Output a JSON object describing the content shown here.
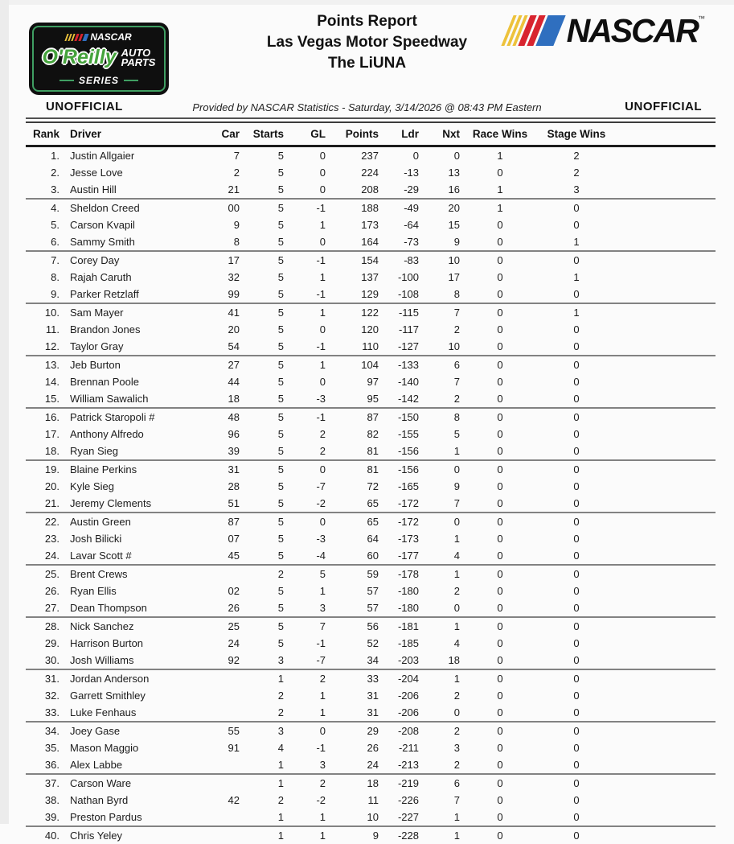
{
  "page": {
    "series_logo": {
      "nascar_text": "NASCAR",
      "oreilly_text": "O'Reilly",
      "auto_text": "AUTO",
      "parts_text": "PARTS",
      "series_text": "SERIES",
      "colors": {
        "green": "#3f9e62",
        "oreilly_green": "#45a33c",
        "black": "#0f0f0f"
      }
    },
    "nascar_logo": {
      "text": "NASCAR",
      "tm": "™",
      "colors": {
        "yellow": "#edc23b",
        "red": "#d8242f",
        "blue": "#2f6fbf",
        "text": "#0f0f0f"
      }
    },
    "title": {
      "line1": "Points Report",
      "line2": "Las Vegas Motor Speedway",
      "line3": "The LiUNA"
    },
    "status": {
      "left": "UNOFFICIAL",
      "right": "UNOFFICIAL",
      "provided_by": "Provided by NASCAR Statistics - Saturday, 3/14/2026 @ 08:43 PM Eastern"
    }
  },
  "table": {
    "columns": [
      "Rank",
      "Driver",
      "Car",
      "Starts",
      "GL",
      "Points",
      "Ldr",
      "Nxt",
      "Race Wins",
      "Stage Wins"
    ],
    "rows": [
      [
        "1.",
        "Justin Allgaier",
        "7",
        "5",
        "0",
        "237",
        "0",
        "0",
        "1",
        "2"
      ],
      [
        "2.",
        "Jesse Love",
        "2",
        "5",
        "0",
        "224",
        "-13",
        "13",
        "0",
        "2"
      ],
      [
        "3.",
        "Austin Hill",
        "21",
        "5",
        "0",
        "208",
        "-29",
        "16",
        "1",
        "3"
      ],
      [
        "4.",
        "Sheldon Creed",
        "00",
        "5",
        "-1",
        "188",
        "-49",
        "20",
        "1",
        "0"
      ],
      [
        "5.",
        "Carson Kvapil",
        "9",
        "5",
        "1",
        "173",
        "-64",
        "15",
        "0",
        "0"
      ],
      [
        "6.",
        "Sammy Smith",
        "8",
        "5",
        "0",
        "164",
        "-73",
        "9",
        "0",
        "1"
      ],
      [
        "7.",
        "Corey Day",
        "17",
        "5",
        "-1",
        "154",
        "-83",
        "10",
        "0",
        "0"
      ],
      [
        "8.",
        "Rajah Caruth",
        "32",
        "5",
        "1",
        "137",
        "-100",
        "17",
        "0",
        "1"
      ],
      [
        "9.",
        "Parker Retzlaff",
        "99",
        "5",
        "-1",
        "129",
        "-108",
        "8",
        "0",
        "0"
      ],
      [
        "10.",
        "Sam Mayer",
        "41",
        "5",
        "1",
        "122",
        "-115",
        "7",
        "0",
        "1"
      ],
      [
        "11.",
        "Brandon Jones",
        "20",
        "5",
        "0",
        "120",
        "-117",
        "2",
        "0",
        "0"
      ],
      [
        "12.",
        "Taylor Gray",
        "54",
        "5",
        "-1",
        "110",
        "-127",
        "10",
        "0",
        "0"
      ],
      [
        "13.",
        "Jeb Burton",
        "27",
        "5",
        "1",
        "104",
        "-133",
        "6",
        "0",
        "0"
      ],
      [
        "14.",
        "Brennan Poole",
        "44",
        "5",
        "0",
        "97",
        "-140",
        "7",
        "0",
        "0"
      ],
      [
        "15.",
        "William Sawalich",
        "18",
        "5",
        "-3",
        "95",
        "-142",
        "2",
        "0",
        "0"
      ],
      [
        "16.",
        "Patrick Staropoli #",
        "48",
        "5",
        "-1",
        "87",
        "-150",
        "8",
        "0",
        "0"
      ],
      [
        "17.",
        "Anthony Alfredo",
        "96",
        "5",
        "2",
        "82",
        "-155",
        "5",
        "0",
        "0"
      ],
      [
        "18.",
        "Ryan Sieg",
        "39",
        "5",
        "2",
        "81",
        "-156",
        "1",
        "0",
        "0"
      ],
      [
        "19.",
        "Blaine Perkins",
        "31",
        "5",
        "0",
        "81",
        "-156",
        "0",
        "0",
        "0"
      ],
      [
        "20.",
        "Kyle Sieg",
        "28",
        "5",
        "-7",
        "72",
        "-165",
        "9",
        "0",
        "0"
      ],
      [
        "21.",
        "Jeremy Clements",
        "51",
        "5",
        "-2",
        "65",
        "-172",
        "7",
        "0",
        "0"
      ],
      [
        "22.",
        "Austin Green",
        "87",
        "5",
        "0",
        "65",
        "-172",
        "0",
        "0",
        "0"
      ],
      [
        "23.",
        "Josh Bilicki",
        "07",
        "5",
        "-3",
        "64",
        "-173",
        "1",
        "0",
        "0"
      ],
      [
        "24.",
        "Lavar Scott #",
        "45",
        "5",
        "-4",
        "60",
        "-177",
        "4",
        "0",
        "0"
      ],
      [
        "25.",
        "Brent Crews",
        "",
        "2",
        "5",
        "59",
        "-178",
        "1",
        "0",
        "0"
      ],
      [
        "26.",
        "Ryan Ellis",
        "02",
        "5",
        "1",
        "57",
        "-180",
        "2",
        "0",
        "0"
      ],
      [
        "27.",
        "Dean Thompson",
        "26",
        "5",
        "3",
        "57",
        "-180",
        "0",
        "0",
        "0"
      ],
      [
        "28.",
        "Nick Sanchez",
        "25",
        "5",
        "7",
        "56",
        "-181",
        "1",
        "0",
        "0"
      ],
      [
        "29.",
        "Harrison Burton",
        "24",
        "5",
        "-1",
        "52",
        "-185",
        "4",
        "0",
        "0"
      ],
      [
        "30.",
        "Josh Williams",
        "92",
        "3",
        "-7",
        "34",
        "-203",
        "18",
        "0",
        "0"
      ],
      [
        "31.",
        "Jordan Anderson",
        "",
        "1",
        "2",
        "33",
        "-204",
        "1",
        "0",
        "0"
      ],
      [
        "32.",
        "Garrett Smithley",
        "",
        "2",
        "1",
        "31",
        "-206",
        "2",
        "0",
        "0"
      ],
      [
        "33.",
        "Luke Fenhaus",
        "",
        "2",
        "1",
        "31",
        "-206",
        "0",
        "0",
        "0"
      ],
      [
        "34.",
        "Joey Gase",
        "55",
        "3",
        "0",
        "29",
        "-208",
        "2",
        "0",
        "0"
      ],
      [
        "35.",
        "Mason Maggio",
        "91",
        "4",
        "-1",
        "26",
        "-211",
        "3",
        "0",
        "0"
      ],
      [
        "36.",
        "Alex Labbe",
        "",
        "1",
        "3",
        "24",
        "-213",
        "2",
        "0",
        "0"
      ],
      [
        "37.",
        "Carson Ware",
        "",
        "1",
        "2",
        "18",
        "-219",
        "6",
        "0",
        "0"
      ],
      [
        "38.",
        "Nathan Byrd",
        "42",
        "2",
        "-2",
        "11",
        "-226",
        "7",
        "0",
        "0"
      ],
      [
        "39.",
        "Preston Pardus",
        "",
        "1",
        "1",
        "10",
        "-227",
        "1",
        "0",
        "0"
      ],
      [
        "40.",
        "Chris Yeley",
        "",
        "1",
        "1",
        "9",
        "-228",
        "1",
        "0",
        "0"
      ]
    ]
  }
}
